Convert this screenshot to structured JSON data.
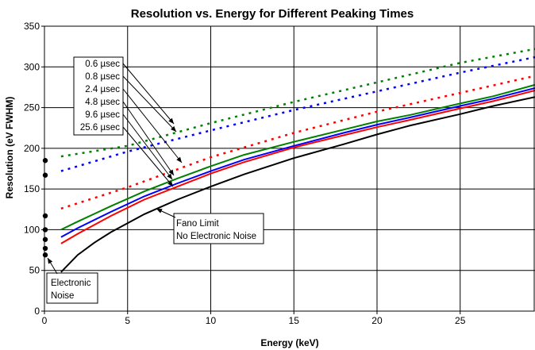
{
  "chart_data": {
    "type": "line",
    "title": "Resolution vs. Energy for Different Peaking Times",
    "xlabel": "Energy (keV)",
    "ylabel": "Resolution (eV FWHM)",
    "xlim": [
      0,
      29.5
    ],
    "ylim": [
      0,
      350
    ],
    "xticks": [
      0,
      5,
      10,
      15,
      20,
      25
    ],
    "yticks": [
      0,
      50,
      100,
      150,
      200,
      250,
      300,
      350
    ],
    "grid": true,
    "series": [
      {
        "name": "0.6 µsec",
        "color": "#008000",
        "style": "dotted",
        "x": [
          1,
          5,
          10,
          15,
          20,
          25,
          29.5
        ],
        "y": [
          190,
          203,
          231,
          257,
          281,
          305,
          322
        ]
      },
      {
        "name": "0.8 µsec",
        "color": "#0000ff",
        "style": "dotted",
        "x": [
          1,
          5,
          10,
          15,
          20,
          25,
          29.5
        ],
        "y": [
          172,
          196,
          222,
          247,
          270,
          293,
          312
        ]
      },
      {
        "name": "2.4 µsec",
        "color": "#ff0000",
        "style": "dotted",
        "x": [
          1,
          5,
          10,
          15,
          20,
          25,
          29.5
        ],
        "y": [
          126,
          152,
          189,
          219,
          245,
          268,
          289
        ]
      },
      {
        "name": "4.8 µsec",
        "color": "#008000",
        "style": "solid",
        "x": [
          1,
          2,
          4,
          6,
          8,
          10,
          12,
          15,
          18,
          20,
          22,
          25,
          27,
          29.5
        ],
        "y": [
          100,
          110,
          129,
          147,
          163,
          178,
          192,
          208,
          223,
          233,
          241,
          255,
          264,
          278
        ]
      },
      {
        "name": "9.6 µsec",
        "color": "#0000ff",
        "style": "solid",
        "x": [
          1,
          2,
          4,
          6,
          8,
          10,
          12,
          15,
          18,
          20,
          22,
          25,
          27,
          29.5
        ],
        "y": [
          91,
          102,
          122,
          141,
          157,
          172,
          186,
          203,
          219,
          229,
          238,
          252,
          261,
          274
        ]
      },
      {
        "name": "25.6 µsec",
        "color": "#ff0000",
        "style": "solid",
        "x": [
          1,
          2,
          4,
          6,
          8,
          10,
          12,
          15,
          18,
          20,
          22,
          25,
          27,
          29.5
        ],
        "y": [
          83,
          95,
          117,
          137,
          153,
          169,
          183,
          201,
          216,
          226,
          235,
          249,
          258,
          271
        ]
      },
      {
        "name": "Fano Limit",
        "color": "#000000",
        "style": "solid",
        "x": [
          1,
          2,
          3,
          4,
          5,
          6,
          8,
          10,
          12,
          15,
          18,
          20,
          22,
          25,
          27,
          29.5
        ],
        "y": [
          48,
          69,
          84,
          97,
          108,
          119,
          137,
          153,
          168,
          188,
          205,
          217,
          228,
          242,
          252,
          263
        ]
      },
      {
        "name": "Electronic Noise",
        "color": "#000000",
        "style": "points",
        "x": [
          0,
          0,
          0,
          0,
          0,
          0,
          0
        ],
        "y": [
          185,
          167,
          117,
          100,
          88,
          77,
          69
        ]
      }
    ],
    "annotations": {
      "peaking_times": [
        "0.6 µsec",
        "0.8 µsec",
        "2.4 µsec",
        "4.8 µsec",
        "9.6 µsec",
        "25.6 µsec"
      ],
      "fano_line1": "Fano Limit",
      "fano_line2": "No Electronic Noise",
      "noise_line1": "Electronic",
      "noise_line2": "Noise"
    }
  }
}
